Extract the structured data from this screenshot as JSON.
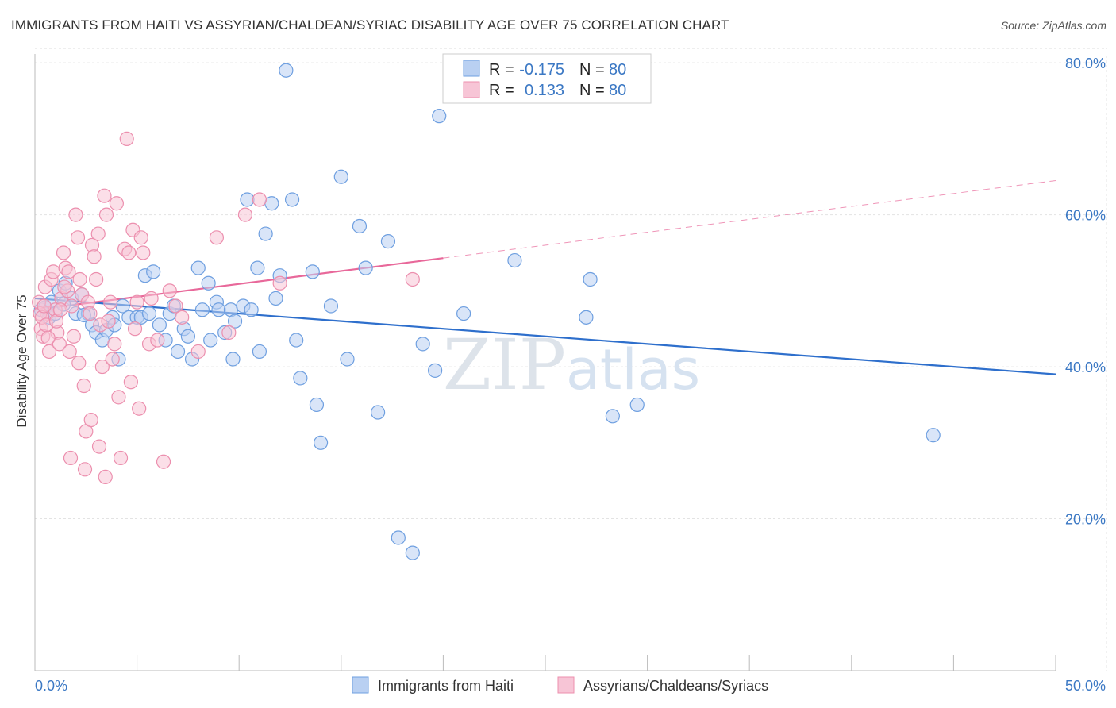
{
  "chart_data": {
    "type": "scatter",
    "title": "IMMIGRANTS FROM HAITI VS ASSYRIAN/CHALDEAN/SYRIAC DISABILITY AGE OVER 75 CORRELATION CHART",
    "source": "Source: ZipAtlas.com",
    "xlabel": "",
    "ylabel": "Disability Age Over 75",
    "xlim": [
      0,
      50
    ],
    "ylim": [
      0,
      82
    ],
    "x_tick_labels": [
      "0.0%",
      "50.0%"
    ],
    "y_ticks": [
      20,
      40,
      60,
      80
    ],
    "y_tick_labels": [
      "20.0%",
      "40.0%",
      "60.0%",
      "80.0%"
    ],
    "grid": true,
    "watermark": "ZIPatlas",
    "legend_stats": [
      {
        "r_label": "R =",
        "r_value": "-0.175",
        "n_label": "N =",
        "n_value": "80"
      },
      {
        "r_label": "R =",
        "r_value": "0.133",
        "n_label": "N =",
        "n_value": "80"
      }
    ],
    "series": [
      {
        "name": "Immigrants from Haiti",
        "color": "#6e9fe0",
        "fill": "#b9d0f2",
        "trend": {
          "x": [
            0,
            50
          ],
          "y": [
            49.0,
            39.0
          ],
          "line_color": "#2e6fcc",
          "dashed_from": null
        },
        "points": [
          [
            0.3,
            47.5
          ],
          [
            0.5,
            47.8
          ],
          [
            0.7,
            46.5
          ],
          [
            0.8,
            48.5
          ],
          [
            1.0,
            47.0
          ],
          [
            1.2,
            50.0
          ],
          [
            1.5,
            51.0
          ],
          [
            1.8,
            49.0
          ],
          [
            2.0,
            47.0
          ],
          [
            2.3,
            49.5
          ],
          [
            2.6,
            47.0
          ],
          [
            2.8,
            45.5
          ],
          [
            3.0,
            44.5
          ],
          [
            3.3,
            43.5
          ],
          [
            3.5,
            44.8
          ],
          [
            3.8,
            46.5
          ],
          [
            3.9,
            45.5
          ],
          [
            4.1,
            41.0
          ],
          [
            4.3,
            48.0
          ],
          [
            4.6,
            46.5
          ],
          [
            5.0,
            46.5
          ],
          [
            5.2,
            46.5
          ],
          [
            5.4,
            52.0
          ],
          [
            5.6,
            47.0
          ],
          [
            5.8,
            52.5
          ],
          [
            6.1,
            45.5
          ],
          [
            6.4,
            43.5
          ],
          [
            6.6,
            47.0
          ],
          [
            6.8,
            48.0
          ],
          [
            7.0,
            42.0
          ],
          [
            7.3,
            45.0
          ],
          [
            7.5,
            44.0
          ],
          [
            7.7,
            41.0
          ],
          [
            8.0,
            53.0
          ],
          [
            8.2,
            47.5
          ],
          [
            8.5,
            51.0
          ],
          [
            8.6,
            43.5
          ],
          [
            8.9,
            48.5
          ],
          [
            9.0,
            47.5
          ],
          [
            9.3,
            44.5
          ],
          [
            9.6,
            47.5
          ],
          [
            9.7,
            41.0
          ],
          [
            9.8,
            46.0
          ],
          [
            10.2,
            48.0
          ],
          [
            10.4,
            62.0
          ],
          [
            10.6,
            47.5
          ],
          [
            10.9,
            53.0
          ],
          [
            11.0,
            42.0
          ],
          [
            11.3,
            57.5
          ],
          [
            11.6,
            61.5
          ],
          [
            11.8,
            49.0
          ],
          [
            12.0,
            52.0
          ],
          [
            12.3,
            79.0
          ],
          [
            12.6,
            62.0
          ],
          [
            12.8,
            43.5
          ],
          [
            13.0,
            38.5
          ],
          [
            13.6,
            52.5
          ],
          [
            13.8,
            35.0
          ],
          [
            14.0,
            30.0
          ],
          [
            14.5,
            48.0
          ],
          [
            15.0,
            65.0
          ],
          [
            15.3,
            41.0
          ],
          [
            15.9,
            58.5
          ],
          [
            16.2,
            53.0
          ],
          [
            16.8,
            34.0
          ],
          [
            17.3,
            56.5
          ],
          [
            17.8,
            17.5
          ],
          [
            18.5,
            15.5
          ],
          [
            19.0,
            43.0
          ],
          [
            19.6,
            39.5
          ],
          [
            19.8,
            73.0
          ],
          [
            21.0,
            47.0
          ],
          [
            23.5,
            54.0
          ],
          [
            27.0,
            46.5
          ],
          [
            27.2,
            51.5
          ],
          [
            28.3,
            33.5
          ],
          [
            29.5,
            35.0
          ],
          [
            44.0,
            31.0
          ],
          [
            1.4,
            48.2
          ],
          [
            2.4,
            46.8
          ]
        ]
      },
      {
        "name": "Assyrians/Chaldeans/Syriacs",
        "color": "#ec8fae",
        "fill": "#f7c5d6",
        "trend": {
          "x": [
            0,
            50
          ],
          "y": [
            47.5,
            64.5
          ],
          "line_color": "#e8689a",
          "dashed_from": 20
        },
        "points": [
          [
            0.2,
            48.5
          ],
          [
            0.3,
            45.0
          ],
          [
            0.4,
            44.0
          ],
          [
            0.5,
            50.5
          ],
          [
            0.6,
            47.0
          ],
          [
            0.7,
            42.0
          ],
          [
            0.8,
            51.5
          ],
          [
            0.9,
            52.5
          ],
          [
            1.0,
            47.5
          ],
          [
            1.1,
            44.5
          ],
          [
            1.2,
            43.0
          ],
          [
            1.3,
            49.0
          ],
          [
            1.4,
            55.0
          ],
          [
            1.5,
            53.0
          ],
          [
            1.6,
            50.0
          ],
          [
            1.7,
            42.0
          ],
          [
            1.8,
            48.0
          ],
          [
            1.9,
            44.0
          ],
          [
            2.0,
            60.0
          ],
          [
            2.1,
            57.0
          ],
          [
            2.2,
            51.5
          ],
          [
            2.3,
            49.5
          ],
          [
            2.4,
            37.5
          ],
          [
            2.5,
            31.5
          ],
          [
            2.6,
            48.5
          ],
          [
            2.7,
            47.0
          ],
          [
            2.8,
            56.0
          ],
          [
            2.9,
            54.5
          ],
          [
            3.0,
            51.5
          ],
          [
            3.1,
            57.5
          ],
          [
            3.2,
            45.5
          ],
          [
            3.3,
            40.0
          ],
          [
            3.4,
            62.5
          ],
          [
            3.5,
            60.0
          ],
          [
            3.6,
            46.0
          ],
          [
            3.7,
            48.5
          ],
          [
            3.8,
            41.0
          ],
          [
            3.9,
            43.0
          ],
          [
            4.0,
            61.5
          ],
          [
            4.1,
            36.0
          ],
          [
            4.2,
            28.0
          ],
          [
            4.4,
            55.5
          ],
          [
            4.5,
            70.0
          ],
          [
            4.6,
            55.0
          ],
          [
            4.7,
            38.0
          ],
          [
            4.8,
            58.0
          ],
          [
            4.9,
            45.0
          ],
          [
            5.0,
            48.5
          ],
          [
            5.1,
            34.5
          ],
          [
            5.2,
            57.0
          ],
          [
            5.3,
            55.0
          ],
          [
            5.6,
            43.0
          ],
          [
            5.7,
            49.0
          ],
          [
            6.0,
            43.5
          ],
          [
            6.3,
            27.5
          ],
          [
            6.6,
            50.0
          ],
          [
            6.9,
            48.0
          ],
          [
            7.2,
            46.5
          ],
          [
            8.0,
            42.0
          ],
          [
            8.9,
            57.0
          ],
          [
            9.5,
            44.5
          ],
          [
            10.3,
            60.0
          ],
          [
            11.0,
            62.0
          ],
          [
            12.0,
            51.0
          ],
          [
            18.5,
            51.5
          ],
          [
            0.25,
            47.0
          ],
          [
            0.35,
            46.5
          ],
          [
            0.45,
            48.0
          ],
          [
            0.55,
            45.5
          ],
          [
            0.65,
            43.8
          ],
          [
            1.05,
            46.0
          ],
          [
            1.25,
            47.5
          ],
          [
            1.45,
            50.5
          ],
          [
            1.65,
            52.5
          ],
          [
            2.45,
            26.5
          ],
          [
            2.15,
            40.5
          ],
          [
            2.75,
            33.0
          ],
          [
            3.15,
            29.5
          ],
          [
            3.45,
            25.5
          ],
          [
            1.75,
            28.0
          ]
        ]
      }
    ],
    "legend": {
      "placement": "bottom-center",
      "entries": [
        "Immigrants from Haiti",
        "Assyrians/Chaldeans/Syriacs"
      ]
    }
  }
}
